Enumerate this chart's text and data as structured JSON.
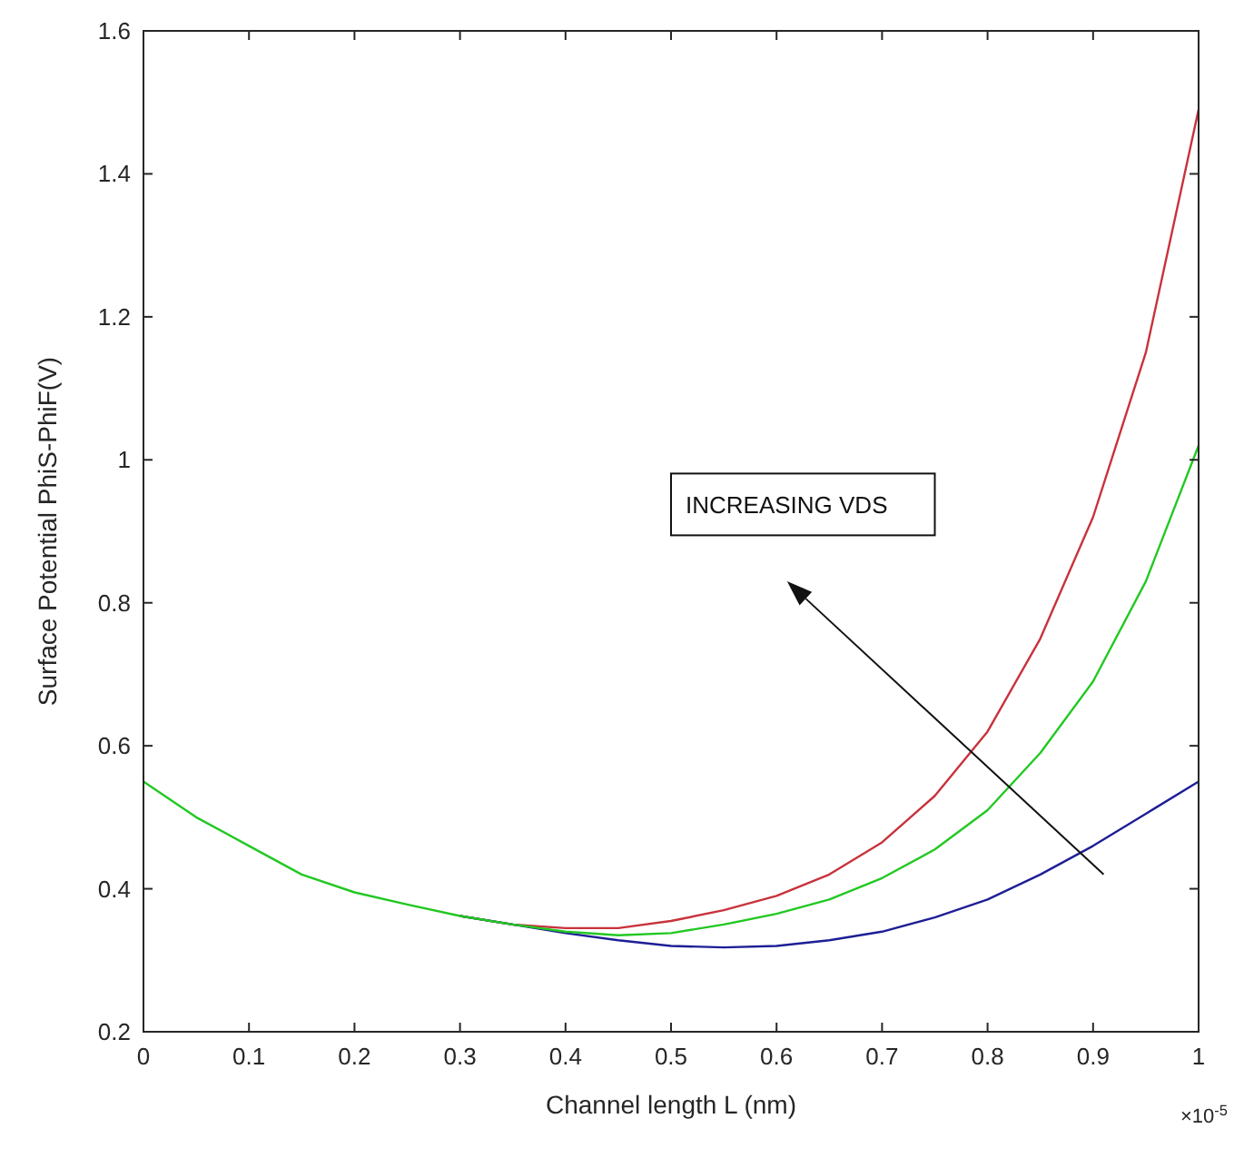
{
  "chart_data": {
    "type": "line",
    "xlabel": "Channel length L (nm)",
    "ylabel": "Surface Potential PhiS-PhiF(V)",
    "x": [
      0,
      0.05,
      0.1,
      0.15,
      0.2,
      0.25,
      0.3,
      0.35,
      0.4,
      0.45,
      0.5,
      0.55,
      0.6,
      0.65,
      0.7,
      0.75,
      0.8,
      0.85,
      0.9,
      0.95,
      1
    ],
    "series": [
      {
        "color": "#c8323c",
        "values": [
          null,
          null,
          null,
          null,
          null,
          null,
          0.362,
          0.35,
          0.345,
          0.345,
          0.355,
          0.37,
          0.39,
          0.42,
          0.465,
          0.53,
          0.62,
          0.75,
          0.92,
          1.15,
          1.49
        ]
      },
      {
        "color": "#1e1e96",
        "values": [
          null,
          null,
          null,
          null,
          null,
          null,
          0.362,
          0.35,
          0.338,
          0.328,
          0.32,
          0.318,
          0.32,
          0.328,
          0.34,
          0.36,
          0.385,
          0.42,
          0.46,
          0.505,
          0.55
        ]
      },
      {
        "color": "#22c822",
        "values": [
          0.55,
          0.5,
          0.46,
          0.42,
          0.395,
          0.378,
          0.362,
          0.35,
          0.34,
          0.335,
          0.338,
          0.35,
          0.365,
          0.385,
          0.415,
          0.455,
          0.51,
          0.59,
          0.69,
          0.83,
          1.02
        ]
      }
    ],
    "xlim": [
      0,
      1
    ],
    "xticks": [
      0,
      0.1,
      0.2,
      0.3,
      0.4,
      0.5,
      0.6,
      0.7,
      0.8,
      0.9,
      1
    ],
    "ylim": [
      0.2,
      1.6
    ],
    "yticks": [
      0.2,
      0.4,
      0.6,
      0.8,
      1,
      1.2,
      1.4,
      1.6
    ],
    "grid": false,
    "annotations": [
      "INCREASING VDS",
      "×10$^{-5}$"
    ]
  }
}
